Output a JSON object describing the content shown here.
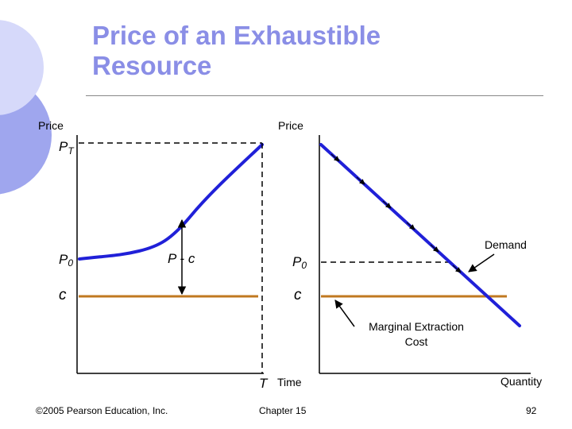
{
  "slide": {
    "title_line1": "Price of an Exhaustible",
    "title_line2": "Resource"
  },
  "left_panel": {
    "y_axis_label": "Price",
    "x_axis_label": "Time",
    "label_PT": "P",
    "label_PT_sub": "T",
    "label_P0": "P",
    "label_P0_sub": "0",
    "label_c": "c",
    "label_T": "T",
    "label_P_minus_c": "P - c"
  },
  "right_panel": {
    "y_axis_label": "Price",
    "x_axis_label": "Quantity",
    "label_P0": "P",
    "label_P0_sub": "0",
    "label_c": "c",
    "label_demand": "Demand",
    "label_mec_line1": "Marginal Extraction",
    "label_mec_line2": "Cost"
  },
  "footer": {
    "copyright": "©2005 Pearson Education, Inc.",
    "chapter": "Chapter 15",
    "page_number": "92"
  },
  "colors": {
    "title": "#8a8ee6",
    "curve": "#2020d8",
    "cost_line": "#c07820",
    "deco_dark": "#aab0f0",
    "deco_light": "#d6d9fa"
  }
}
